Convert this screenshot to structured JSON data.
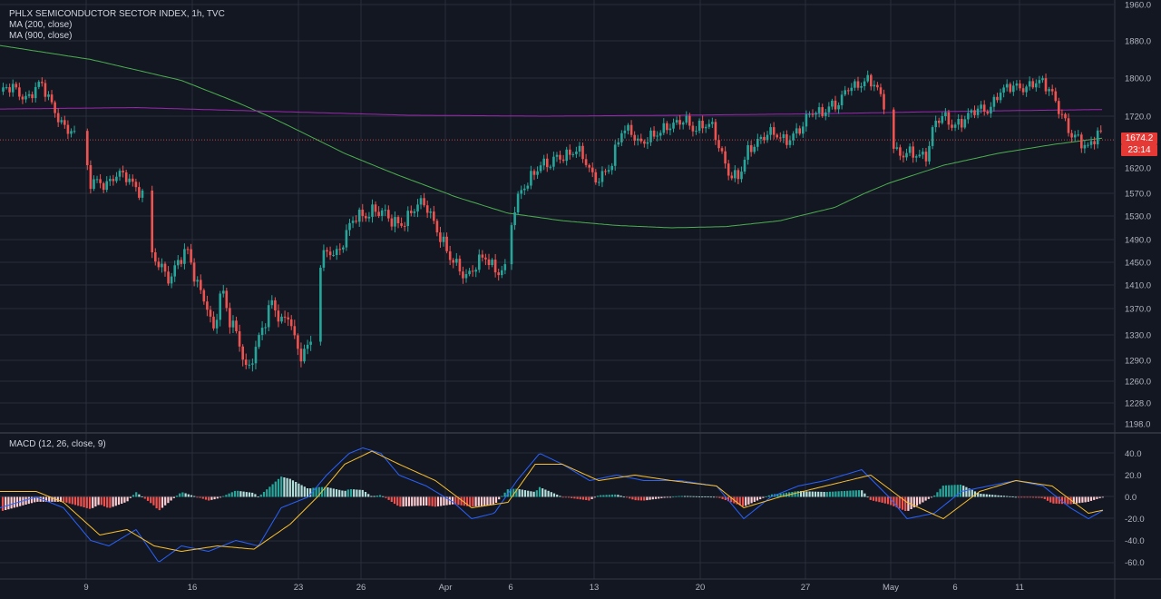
{
  "legend": {
    "title": "PHLX SEMICONDUCTOR SECTOR INDEX, 1h, TVC",
    "ma200": "MA (200, close)",
    "ma900": "MA (900, close)",
    "macd": "MACD (12, 26, close, 9)"
  },
  "price_tag": {
    "price": "1674.2",
    "countdown": "23:14"
  },
  "colors": {
    "background": "#131722",
    "grid": "#2a2e39",
    "up": "#26a69a",
    "down": "#ef5350",
    "ma200": "#9c27b0",
    "ma900": "#4caf50",
    "macd_line": "#2962ff",
    "signal_line": "#fbc02d"
  },
  "chart_data": [
    {
      "type": "candlestick",
      "title": "PHLX SEMICONDUCTOR SECTOR INDEX, 1h, TVC",
      "x_tick_labels": [
        "9",
        "16",
        "23",
        "26",
        "Apr",
        "6",
        "13",
        "20",
        "27",
        "May",
        "6",
        "11"
      ],
      "y_tick_labels": [
        "1960.0",
        "1880.0",
        "1800.0",
        "1720.0",
        "1674.2",
        "1620.0",
        "1570.0",
        "1530.0",
        "1490.0",
        "1450.0",
        "1410.0",
        "1370.0",
        "1330.0",
        "1290.0",
        "1260.0",
        "1228.0",
        "1198.0"
      ],
      "ylim": [
        1198,
        1960
      ],
      "last_price": 1674.2,
      "approx_close_path": [
        [
          0,
          1770
        ],
        [
          15,
          1778
        ],
        [
          30,
          1760
        ],
        [
          45,
          1785
        ],
        [
          58,
          1745
        ],
        [
          70,
          1700
        ],
        [
          82,
          1680
        ],
        [
          92,
          1690
        ],
        [
          98,
          1590
        ],
        [
          108,
          1600
        ],
        [
          118,
          1585
        ],
        [
          128,
          1600
        ],
        [
          138,
          1610
        ],
        [
          148,
          1590
        ],
        [
          158,
          1560
        ],
        [
          168,
          1455
        ],
        [
          178,
          1440
        ],
        [
          188,
          1425
        ],
        [
          195,
          1450
        ],
        [
          208,
          1465
        ],
        [
          215,
          1420
        ],
        [
          225,
          1395
        ],
        [
          235,
          1330
        ],
        [
          245,
          1400
        ],
        [
          252,
          1360
        ],
        [
          262,
          1335
        ],
        [
          272,
          1265
        ],
        [
          282,
          1305
        ],
        [
          290,
          1350
        ],
        [
          300,
          1385
        ],
        [
          310,
          1340
        ],
        [
          318,
          1360
        ],
        [
          326,
          1320
        ],
        [
          334,
          1300
        ],
        [
          344,
          1320
        ],
        [
          352,
          1440
        ],
        [
          362,
          1470
        ],
        [
          372,
          1470
        ],
        [
          382,
          1500
        ],
        [
          392,
          1525
        ],
        [
          400,
          1530
        ],
        [
          410,
          1545
        ],
        [
          420,
          1535
        ],
        [
          430,
          1520
        ],
        [
          440,
          1520
        ],
        [
          450,
          1530
        ],
        [
          460,
          1545
        ],
        [
          470,
          1550
        ],
        [
          478,
          1525
        ],
        [
          486,
          1495
        ],
        [
          495,
          1455
        ],
        [
          505,
          1440
        ],
        [
          515,
          1430
        ],
        [
          525,
          1445
        ],
        [
          535,
          1455
        ],
        [
          545,
          1440
        ],
        [
          558,
          1440
        ],
        [
          565,
          1530
        ],
        [
          575,
          1570
        ],
        [
          585,
          1605
        ],
        [
          595,
          1630
        ],
        [
          605,
          1620
        ],
        [
          615,
          1640
        ],
        [
          625,
          1650
        ],
        [
          635,
          1655
        ],
        [
          645,
          1630
        ],
        [
          655,
          1600
        ],
        [
          665,
          1610
        ],
        [
          675,
          1625
        ],
        [
          685,
          1690
        ],
        [
          695,
          1700
        ],
        [
          705,
          1665
        ],
        [
          715,
          1670
        ],
        [
          725,
          1690
        ],
        [
          735,
          1705
        ],
        [
          745,
          1700
        ],
        [
          755,
          1710
        ],
        [
          765,
          1700
        ],
        [
          775,
          1705
        ],
        [
          785,
          1695
        ],
        [
          795,
          1650
        ],
        [
          805,
          1610
        ],
        [
          815,
          1600
        ],
        [
          825,
          1650
        ],
        [
          835,
          1675
        ],
        [
          845,
          1690
        ],
        [
          855,
          1680
        ],
        [
          865,
          1670
        ],
        [
          875,
          1690
        ],
        [
          885,
          1700
        ],
        [
          895,
          1725
        ],
        [
          905,
          1730
        ],
        [
          915,
          1745
        ],
        [
          925,
          1740
        ],
        [
          935,
          1780
        ],
        [
          945,
          1790
        ],
        [
          955,
          1795
        ],
        [
          965,
          1780
        ],
        [
          975,
          1745
        ],
        [
          982,
          1670
        ],
        [
          992,
          1650
        ],
        [
          1002,
          1645
        ],
        [
          1012,
          1640
        ],
        [
          1022,
          1650
        ],
        [
          1030,
          1710
        ],
        [
          1040,
          1715
        ],
        [
          1050,
          1700
        ],
        [
          1060,
          1715
        ],
        [
          1070,
          1725
        ],
        [
          1080,
          1730
        ],
        [
          1090,
          1735
        ],
        [
          1100,
          1770
        ],
        [
          1110,
          1775
        ],
        [
          1120,
          1780
        ],
        [
          1130,
          1785
        ],
        [
          1140,
          1790
        ],
        [
          1150,
          1785
        ],
        [
          1160,
          1770
        ],
        [
          1170,
          1730
        ],
        [
          1180,
          1680
        ],
        [
          1190,
          1670
        ],
        [
          1200,
          1665
        ],
        [
          1210,
          1690
        ],
        [
          1216,
          1674.2
        ]
      ],
      "series": [
        {
          "name": "MA (200, close)",
          "approx_path": [
            [
              0,
              1735
            ],
            [
              150,
              1738
            ],
            [
              300,
              1730
            ],
            [
              450,
              1722
            ],
            [
              600,
              1720
            ],
            [
              750,
              1722
            ],
            [
              900,
              1725
            ],
            [
              1050,
              1730
            ],
            [
              1217,
              1734
            ]
          ]
        },
        {
          "name": "MA (900, close)",
          "approx_path": [
            [
              0,
              1870
            ],
            [
              100,
              1840
            ],
            [
              200,
              1795
            ],
            [
              260,
              1750
            ],
            [
              320,
              1700
            ],
            [
              380,
              1648
            ],
            [
              440,
              1605
            ],
            [
              500,
              1565
            ],
            [
              560,
              1535
            ],
            [
              620,
              1522
            ],
            [
              680,
              1514
            ],
            [
              740,
              1510
            ],
            [
              800,
              1512
            ],
            [
              860,
              1522
            ],
            [
              920,
              1545
            ],
            [
              980,
              1590
            ],
            [
              1040,
              1625
            ],
            [
              1100,
              1648
            ],
            [
              1160,
              1665
            ],
            [
              1217,
              1678
            ]
          ]
        }
      ]
    },
    {
      "type": "macd",
      "title": "MACD (12, 26, close, 9)",
      "y_tick_labels": [
        "40.0",
        "20.0",
        "0.0",
        "-20.0",
        "-40.0",
        "-60.0"
      ],
      "ylim": [
        -65,
        45
      ],
      "series": [
        {
          "name": "MACD",
          "approx_path": [
            [
              0,
              -10
            ],
            [
              40,
              0
            ],
            [
              70,
              -10
            ],
            [
              100,
              -40
            ],
            [
              120,
              -45
            ],
            [
              150,
              -30
            ],
            [
              175,
              -60
            ],
            [
              200,
              -45
            ],
            [
              230,
              -50
            ],
            [
              260,
              -40
            ],
            [
              285,
              -45
            ],
            [
              310,
              -10
            ],
            [
              340,
              0
            ],
            [
              360,
              20
            ],
            [
              385,
              40
            ],
            [
              400,
              45
            ],
            [
              420,
              40
            ],
            [
              440,
              20
            ],
            [
              470,
              10
            ],
            [
              500,
              -5
            ],
            [
              520,
              -20
            ],
            [
              545,
              -15
            ],
            [
              570,
              15
            ],
            [
              595,
              40
            ],
            [
              620,
              30
            ],
            [
              650,
              15
            ],
            [
              680,
              20
            ],
            [
              710,
              15
            ],
            [
              750,
              15
            ],
            [
              790,
              10
            ],
            [
              820,
              -20
            ],
            [
              850,
              0
            ],
            [
              880,
              10
            ],
            [
              910,
              15
            ],
            [
              950,
              25
            ],
            [
              980,
              0
            ],
            [
              1000,
              -20
            ],
            [
              1030,
              -15
            ],
            [
              1060,
              5
            ],
            [
              1090,
              10
            ],
            [
              1120,
              15
            ],
            [
              1150,
              10
            ],
            [
              1180,
              -10
            ],
            [
              1200,
              -20
            ],
            [
              1217,
              -12
            ]
          ]
        },
        {
          "name": "Signal",
          "approx_path": [
            [
              0,
              5
            ],
            [
              40,
              5
            ],
            [
              70,
              -5
            ],
            [
              110,
              -35
            ],
            [
              140,
              -30
            ],
            [
              170,
              -45
            ],
            [
              200,
              -50
            ],
            [
              240,
              -45
            ],
            [
              280,
              -48
            ],
            [
              320,
              -25
            ],
            [
              350,
              0
            ],
            [
              380,
              30
            ],
            [
              410,
              42
            ],
            [
              440,
              30
            ],
            [
              480,
              15
            ],
            [
              520,
              -10
            ],
            [
              560,
              -5
            ],
            [
              590,
              30
            ],
            [
              620,
              30
            ],
            [
              660,
              15
            ],
            [
              700,
              20
            ],
            [
              740,
              15
            ],
            [
              790,
              10
            ],
            [
              820,
              -10
            ],
            [
              860,
              0
            ],
            [
              910,
              10
            ],
            [
              960,
              20
            ],
            [
              1000,
              -5
            ],
            [
              1040,
              -20
            ],
            [
              1080,
              5
            ],
            [
              1120,
              15
            ],
            [
              1160,
              10
            ],
            [
              1200,
              -15
            ],
            [
              1217,
              -12
            ]
          ]
        }
      ]
    }
  ]
}
